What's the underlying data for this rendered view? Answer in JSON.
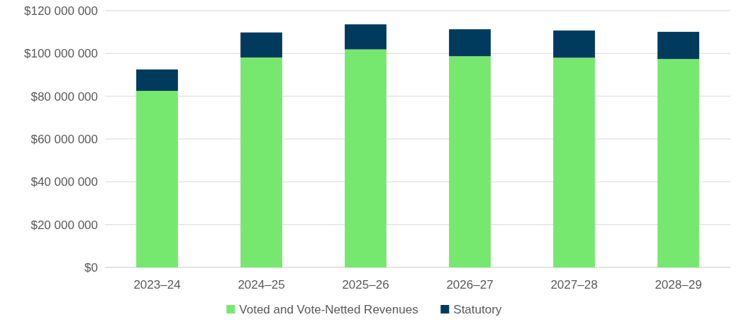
{
  "chart_data": {
    "type": "bar",
    "stacked": true,
    "categories": [
      "2023–24",
      "2024–25",
      "2025–26",
      "2026–27",
      "2027–28",
      "2028–29"
    ],
    "series": [
      {
        "name": "Voted and Vote-Netted Revenues",
        "color": "#77e86f",
        "values": [
          82500000,
          98100000,
          101900000,
          98700000,
          98000000,
          97400000
        ]
      },
      {
        "name": "Statutory",
        "color": "#003a5d",
        "values": [
          10000000,
          11700000,
          11700000,
          12600000,
          12700000,
          12700000
        ]
      }
    ],
    "ylim": [
      0,
      120000000
    ],
    "yticks": [
      {
        "value": 0,
        "label": "$0"
      },
      {
        "value": 20000000,
        "label": "$20 000 000"
      },
      {
        "value": 40000000,
        "label": "$40 000 000"
      },
      {
        "value": 60000000,
        "label": "$60 000 000"
      },
      {
        "value": 80000000,
        "label": "$80 000 000"
      },
      {
        "value": 100000000,
        "label": "$100 000 000"
      },
      {
        "value": 120000000,
        "label": "$120 000 000"
      }
    ],
    "grid": "y",
    "legend": "bottom"
  }
}
